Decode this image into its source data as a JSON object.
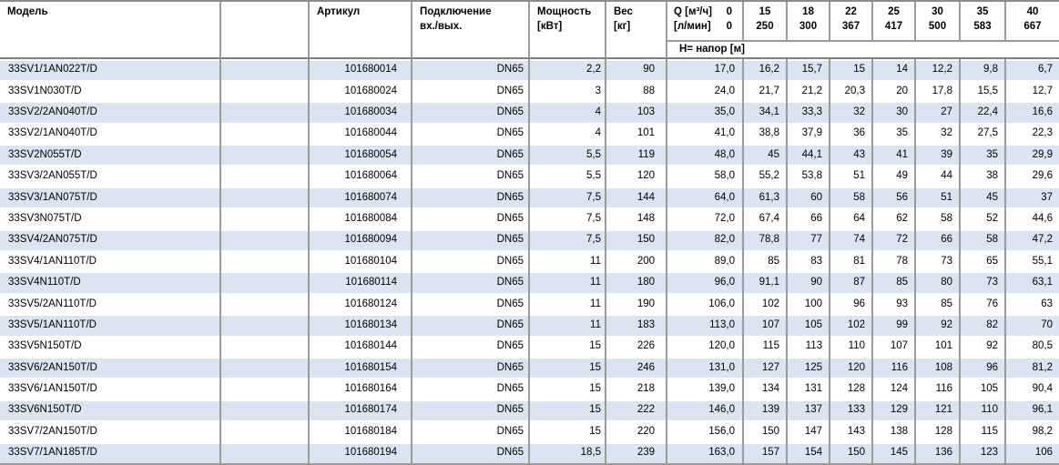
{
  "colors": {
    "stripe_blue": "#dbe5f1",
    "grid_gray": "#9b9b9b",
    "header_rule_dark": "#7f7f7f",
    "text": "#000000"
  },
  "table": {
    "header": {
      "model": "Модель",
      "article": "Артикул",
      "connection_line1": "Подключение",
      "connection_line2": "вх./вых.",
      "power_line1": "Мощность",
      "power_line2": "[кВт]",
      "weight_line1": "Вес",
      "weight_line2": "[кг]",
      "q": {
        "line1_label": "Q [м³/ч]",
        "line1_value": "0",
        "line2_label": "[л/мин]",
        "line2_value": "0"
      },
      "flow_columns": [
        {
          "m3h": "15",
          "lmin": "250"
        },
        {
          "m3h": "18",
          "lmin": "300"
        },
        {
          "m3h": "22",
          "lmin": "367"
        },
        {
          "m3h": "25",
          "lmin": "417"
        },
        {
          "m3h": "30",
          "lmin": "500"
        },
        {
          "m3h": "35",
          "lmin": "583"
        },
        {
          "m3h": "40",
          "lmin": "667"
        }
      ],
      "subheader": "Н= напор [м]"
    },
    "rows": [
      {
        "model": "33SV1/1AN022T/D",
        "article": "101680014",
        "connection": "DN65",
        "power": "2,2",
        "weight": "90",
        "heads": [
          "17,0",
          "16,2",
          "15,7",
          "15",
          "14",
          "12,2",
          "9,8",
          "6,7"
        ]
      },
      {
        "model": "33SV1N030T/D",
        "article": "101680024",
        "connection": "DN65",
        "power": "3",
        "weight": "88",
        "heads": [
          "24,0",
          "21,7",
          "21,2",
          "20,3",
          "20",
          "17,8",
          "15,5",
          "12,7"
        ]
      },
      {
        "model": "33SV2/2AN040T/D",
        "article": "101680034",
        "connection": "DN65",
        "power": "4",
        "weight": "103",
        "heads": [
          "35,0",
          "34,1",
          "33,3",
          "32",
          "30",
          "27",
          "22,4",
          "16,6"
        ]
      },
      {
        "model": "33SV2/1AN040T/D",
        "article": "101680044",
        "connection": "DN65",
        "power": "4",
        "weight": "101",
        "heads": [
          "41,0",
          "38,8",
          "37,9",
          "36",
          "35",
          "32",
          "27,5",
          "22,3"
        ]
      },
      {
        "model": "33SV2N055T/D",
        "article": "101680054",
        "connection": "DN65",
        "power": "5,5",
        "weight": "119",
        "heads": [
          "48,0",
          "45",
          "44,1",
          "43",
          "41",
          "39",
          "35",
          "29,9"
        ]
      },
      {
        "model": "33SV3/2AN055T/D",
        "article": "101680064",
        "connection": "DN65",
        "power": "5,5",
        "weight": "120",
        "heads": [
          "58,0",
          "55,2",
          "53,8",
          "51",
          "49",
          "44",
          "38",
          "29,6"
        ]
      },
      {
        "model": "33SV3/1AN075T/D",
        "article": "101680074",
        "connection": "DN65",
        "power": "7,5",
        "weight": "144",
        "heads": [
          "64,0",
          "61,3",
          "60",
          "58",
          "56",
          "51",
          "45",
          "37"
        ]
      },
      {
        "model": "33SV3N075T/D",
        "article": "101680084",
        "connection": "DN65",
        "power": "7,5",
        "weight": "148",
        "heads": [
          "72,0",
          "67,4",
          "66",
          "64",
          "62",
          "58",
          "52",
          "44,6"
        ]
      },
      {
        "model": "33SV4/2AN075T/D",
        "article": "101680094",
        "connection": "DN65",
        "power": "7,5",
        "weight": "150",
        "heads": [
          "82,0",
          "78,8",
          "77",
          "74",
          "72",
          "66",
          "58",
          "47,2"
        ]
      },
      {
        "model": "33SV4/1AN110T/D",
        "article": "101680104",
        "connection": "DN65",
        "power": "11",
        "weight": "200",
        "heads": [
          "89,0",
          "85",
          "83",
          "81",
          "78",
          "73",
          "65",
          "55,1"
        ]
      },
      {
        "model": "33SV4N110T/D",
        "article": "101680114",
        "connection": "DN65",
        "power": "11",
        "weight": "180",
        "heads": [
          "96,0",
          "91,1",
          "90",
          "87",
          "85",
          "80",
          "73",
          "63,1"
        ]
      },
      {
        "model": "33SV5/2AN110T/D",
        "article": "101680124",
        "connection": "DN65",
        "power": "11",
        "weight": "190",
        "heads": [
          "106,0",
          "102",
          "100",
          "96",
          "93",
          "85",
          "76",
          "63"
        ]
      },
      {
        "model": "33SV5/1AN110T/D",
        "article": "101680134",
        "connection": "DN65",
        "power": "11",
        "weight": "183",
        "heads": [
          "113,0",
          "107",
          "105",
          "102",
          "99",
          "92",
          "82",
          "70"
        ]
      },
      {
        "model": "33SV5N150T/D",
        "article": "101680144",
        "connection": "DN65",
        "power": "15",
        "weight": "226",
        "heads": [
          "120,0",
          "115",
          "113",
          "110",
          "107",
          "101",
          "92",
          "80,5"
        ]
      },
      {
        "model": "33SV6/2AN150T/D",
        "article": "101680154",
        "connection": "DN65",
        "power": "15",
        "weight": "246",
        "heads": [
          "131,0",
          "127",
          "125",
          "120",
          "116",
          "108",
          "96",
          "81,2"
        ]
      },
      {
        "model": "33SV6/1AN150T/D",
        "article": "101680164",
        "connection": "DN65",
        "power": "15",
        "weight": "218",
        "heads": [
          "139,0",
          "134",
          "131",
          "128",
          "124",
          "116",
          "105",
          "90,4"
        ]
      },
      {
        "model": "33SV6N150T/D",
        "article": "101680174",
        "connection": "DN65",
        "power": "15",
        "weight": "222",
        "heads": [
          "146,0",
          "139",
          "137",
          "133",
          "129",
          "121",
          "110",
          "96,1"
        ]
      },
      {
        "model": "33SV7/2AN150T/D",
        "article": "101680184",
        "connection": "DN65",
        "power": "15",
        "weight": "220",
        "heads": [
          "156,0",
          "150",
          "147",
          "143",
          "138",
          "128",
          "115",
          "98,2"
        ]
      },
      {
        "model": "33SV7/1AN185T/D",
        "article": "101680194",
        "connection": "DN65",
        "power": "18,5",
        "weight": "239",
        "heads": [
          "163,0",
          "157",
          "154",
          "150",
          "145",
          "136",
          "123",
          "106"
        ]
      }
    ]
  }
}
